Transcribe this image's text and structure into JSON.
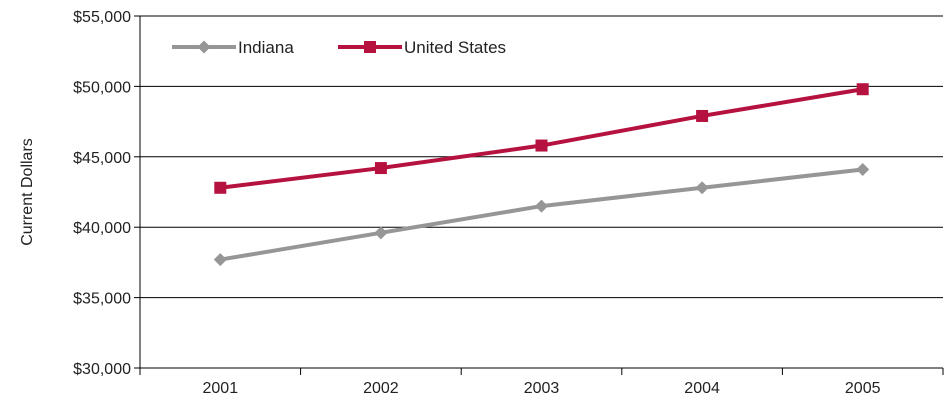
{
  "chart_data": {
    "type": "line",
    "title": "",
    "xlabel": "",
    "ylabel": "Current Dollars",
    "categories": [
      "2001",
      "2002",
      "2003",
      "2004",
      "2005"
    ],
    "ylim": [
      30000,
      55000
    ],
    "y_ticks": [
      30000,
      35000,
      40000,
      45000,
      50000,
      55000
    ],
    "y_tick_labels": [
      "$30,000",
      "$35,000",
      "$40,000",
      "$45,000",
      "$50,000",
      "$55,000"
    ],
    "grid": true,
    "legend_position": "top-left",
    "series": [
      {
        "name": "Indiana",
        "values": [
          37700,
          39600,
          41500,
          42800,
          44100
        ],
        "color": "#969696",
        "marker": "diamond"
      },
      {
        "name": "United States",
        "values": [
          42800,
          44200,
          45800,
          47900,
          49800
        ],
        "color": "#b5123f",
        "marker": "square"
      }
    ]
  }
}
